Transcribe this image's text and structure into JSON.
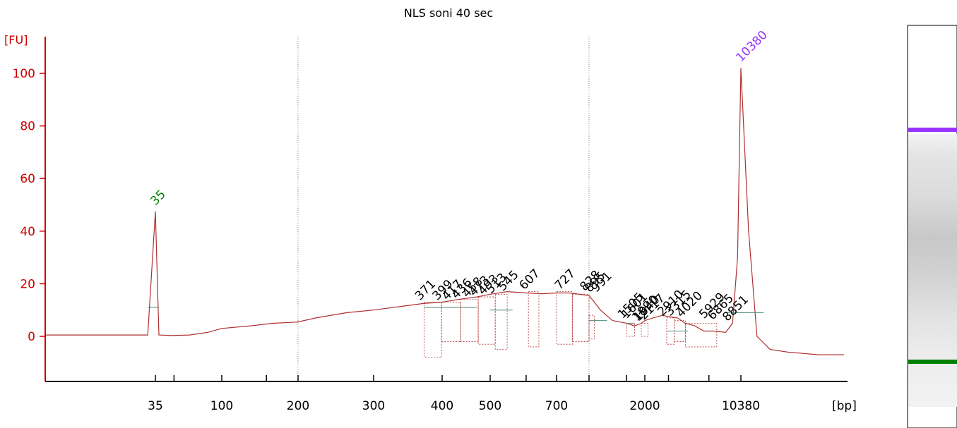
{
  "chart_data": {
    "type": "line",
    "title": "NLS soni 40 sec",
    "ylabel": "[FU]",
    "xlabel": "[bp]",
    "ylim": [
      -18,
      115
    ],
    "y_ticks": [
      0,
      20,
      40,
      60,
      80,
      100
    ],
    "x_tick_labels": [
      "35",
      "100",
      "200",
      "300",
      "400",
      "500",
      "700",
      "2000",
      "10380"
    ],
    "colors": {
      "trace": "#b03030",
      "axis": "#cc0000",
      "lower_marker": "#008000",
      "upper_marker": "#9933ff",
      "peak_label": "#000000",
      "baseline": "#4a8a7a"
    },
    "markers": [
      {
        "label": "35",
        "x": 35,
        "y": 47.5,
        "role": "lower"
      },
      {
        "label": "10380",
        "x": 10380,
        "y": 102,
        "role": "upper"
      }
    ],
    "peak_labels": [
      "371",
      "399",
      "417",
      "436",
      "458",
      "473",
      "493",
      "513",
      "545",
      "607",
      "727",
      "828",
      "895",
      "991",
      "1505",
      "1601",
      "1890",
      "1940",
      "2117",
      "2910",
      "3315",
      "4020",
      "5929",
      "6865",
      "8851"
    ],
    "series": [
      {
        "x": [
          15,
          25,
          33,
          35,
          37,
          45,
          60,
          80,
          100,
          130,
          160,
          190,
          200,
          220,
          260,
          300,
          340,
          370,
          400,
          430,
          470,
          500,
          545,
          600,
          650,
          700,
          750,
          828,
          900,
          991,
          1200,
          1500,
          1700,
          1900,
          2000,
          2300,
          2700,
          3000,
          3500,
          4000,
          4700,
          5500,
          6500,
          8000,
          9000,
          9800,
          10380,
          10900,
          11500,
          12500,
          14000,
          17000,
          20000
        ],
        "y": [
          0.5,
          0.5,
          0.5,
          47.5,
          0.5,
          0.3,
          0.5,
          1.5,
          3,
          4,
          5,
          5.3,
          5.5,
          7,
          9,
          10,
          11.5,
          12.5,
          13,
          14,
          15,
          16,
          17,
          16.5,
          16.2,
          16.5,
          16.5,
          15.5,
          13,
          10,
          6,
          5,
          4,
          5,
          6,
          7,
          8,
          7.5,
          7,
          5,
          4,
          2,
          2,
          1.5,
          5,
          30,
          102,
          40,
          0,
          -5,
          -6,
          -7,
          -7
        ]
      }
    ],
    "gel": {
      "lower_band": "lower marker",
      "upper_band": "upper marker"
    }
  }
}
